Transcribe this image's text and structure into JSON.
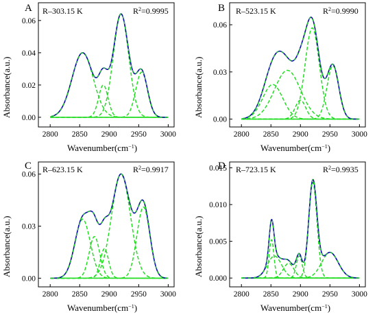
{
  "colors": {
    "envelope": "#0a0aa8",
    "peaks": "#22dd22",
    "baseline": "#22dd22",
    "axis": "#000000"
  },
  "chart_data": [
    {
      "panel": "A",
      "type": "line",
      "label": "R–303.15 K",
      "r2_prefix": "R",
      "r2_suffix": "=0.9995",
      "xlabel": "Wavenumber(cm",
      "ylabel": "Absorbance(a.u.)",
      "xlim": [
        2780,
        3010
      ],
      "ylim": [
        -0.006,
        0.071
      ],
      "xticks": [
        2800,
        2850,
        2900,
        2950,
        3000
      ],
      "yticks": [
        0.0,
        0.02,
        0.04,
        0.06
      ],
      "ytick_labels": [
        "0.00",
        "0.02",
        "0.04",
        "0.06"
      ],
      "peaks": [
        {
          "center": 2855,
          "height": 0.04,
          "width": 18
        },
        {
          "center": 2890,
          "height": 0.02,
          "width": 8
        },
        {
          "center": 2920,
          "height": 0.064,
          "width": 13
        },
        {
          "center": 2955,
          "height": 0.028,
          "width": 10
        }
      ]
    },
    {
      "panel": "B",
      "type": "line",
      "label": "R–523.15 K",
      "r2_prefix": "R",
      "r2_suffix": "=0.9990",
      "xlabel": "Wavenumber(cm",
      "ylabel": "Absorbance(a.u.)",
      "xlim": [
        2780,
        3010
      ],
      "ylim": [
        -0.005,
        0.074
      ],
      "xticks": [
        2800,
        2850,
        2900,
        2950,
        3000
      ],
      "yticks": [
        0.0,
        0.03,
        0.06
      ],
      "ytick_labels": [
        "0.00",
        "0.03",
        "0.06"
      ],
      "peaks": [
        {
          "center": 2853,
          "height": 0.022,
          "width": 17
        },
        {
          "center": 2878,
          "height": 0.031,
          "width": 22
        },
        {
          "center": 2900,
          "height": 0.012,
          "width": 9
        },
        {
          "center": 2920,
          "height": 0.058,
          "width": 12
        },
        {
          "center": 2955,
          "height": 0.034,
          "width": 10
        }
      ]
    },
    {
      "panel": "C",
      "type": "line",
      "label": "R–623.15 K",
      "r2_prefix": "R",
      "r2_suffix": "=0.9917",
      "xlabel": "Wavenumber(cm",
      "ylabel": "Absorbance(a.u.)",
      "xlim": [
        2780,
        3010
      ],
      "ylim": [
        -0.005,
        0.067
      ],
      "xticks": [
        2800,
        2850,
        2900,
        2950,
        3000
      ],
      "yticks": [
        0.0,
        0.03,
        0.06
      ],
      "ytick_labels": [
        "0.00",
        "0.03",
        "0.06"
      ],
      "peaks": [
        {
          "center": 2855,
          "height": 0.034,
          "width": 13
        },
        {
          "center": 2875,
          "height": 0.024,
          "width": 9
        },
        {
          "center": 2892,
          "height": 0.017,
          "width": 7
        },
        {
          "center": 2920,
          "height": 0.06,
          "width": 16
        },
        {
          "center": 2958,
          "height": 0.041,
          "width": 11
        }
      ]
    },
    {
      "panel": "D",
      "type": "line",
      "label": "R–723.15 K",
      "r2_prefix": "R",
      "r2_suffix": "=0.9935",
      "xlabel": "Wavenumber(cm",
      "ylabel": "Absorbance(a.u.)",
      "xlim": [
        2780,
        3010
      ],
      "ylim": [
        -0.0012,
        0.0158
      ],
      "xticks": [
        2800,
        2850,
        2900,
        2950,
        3000
      ],
      "yticks": [
        0.0,
        0.005,
        0.01,
        0.015
      ],
      "ytick_labels": [
        "0.000",
        "0.005",
        "0.010",
        "0.015"
      ],
      "peaks": [
        {
          "center": 2851,
          "height": 0.0052,
          "width": 4
        },
        {
          "center": 2856,
          "height": 0.003,
          "width": 12
        },
        {
          "center": 2880,
          "height": 0.002,
          "width": 9
        },
        {
          "center": 2898,
          "height": 0.003,
          "width": 5
        },
        {
          "center": 2921,
          "height": 0.013,
          "width": 7
        },
        {
          "center": 2950,
          "height": 0.0035,
          "width": 14
        }
      ]
    }
  ]
}
